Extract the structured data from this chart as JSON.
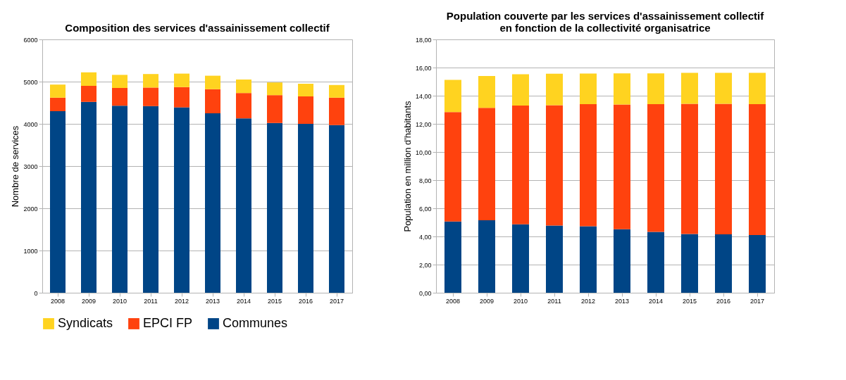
{
  "chart_data": [
    {
      "type": "bar",
      "title": "Composition des services d'assainissement collectif",
      "ylabel": "Nombre de services",
      "stacked": true,
      "grid": "y",
      "legend": "bottom",
      "categories": [
        "2008",
        "2009",
        "2010",
        "2011",
        "2012",
        "2013",
        "2014",
        "2015",
        "2016",
        "2017"
      ],
      "ylim": [
        0,
        6000
      ],
      "yticks": [
        0,
        1000,
        2000,
        3000,
        4000,
        5000,
        6000
      ],
      "series": [
        {
          "name": "Communes",
          "color": "#004586",
          "values": [
            4300,
            4520,
            4430,
            4420,
            4390,
            4250,
            4130,
            4020,
            4000,
            3970
          ]
        },
        {
          "name": "EPCI FP",
          "color": "#ff420e",
          "values": [
            320,
            380,
            420,
            440,
            480,
            570,
            600,
            660,
            650,
            650
          ]
        },
        {
          "name": "Syndicats",
          "color": "#ffd320",
          "values": [
            310,
            320,
            310,
            320,
            320,
            320,
            320,
            300,
            300,
            300
          ]
        }
      ]
    },
    {
      "type": "bar",
      "title": "Population couverte par les services d'assainissement collectif\nen fonction de la collectivité organisatrice",
      "ylabel": "Population en million d'habitants",
      "stacked": true,
      "grid": "y",
      "legend": "bottom",
      "categories": [
        "2008",
        "2009",
        "2010",
        "2011",
        "2012",
        "2013",
        "2014",
        "2015",
        "2016",
        "2017"
      ],
      "ylim": [
        0,
        18
      ],
      "yticks": [
        {
          "value": 0,
          "label": "0,00"
        },
        {
          "value": 2,
          "label": "2,00"
        },
        {
          "value": 4,
          "label": "4,00"
        },
        {
          "value": 6,
          "label": "6,00"
        },
        {
          "value": 8,
          "label": "8,00"
        },
        {
          "value": 10,
          "label": "10,00"
        },
        {
          "value": 12,
          "label": "12,00"
        },
        {
          "value": 14,
          "label": "14,00"
        },
        {
          "value": 16,
          "label": "16,00"
        },
        {
          "value": 18,
          "label": "18,00"
        }
      ],
      "series": [
        {
          "name": "Communes",
          "color": "#004586",
          "values": [
            5.06,
            5.15,
            4.86,
            4.77,
            4.72,
            4.51,
            4.33,
            4.17,
            4.15,
            4.1
          ]
        },
        {
          "name": "EPCI FP",
          "color": "#ff420e",
          "values": [
            7.78,
            7.99,
            8.44,
            8.56,
            8.68,
            8.87,
            9.07,
            9.25,
            9.27,
            9.3
          ]
        },
        {
          "name": "Syndicats",
          "color": "#ffd320",
          "values": [
            2.28,
            2.26,
            2.22,
            2.23,
            2.18,
            2.21,
            2.19,
            2.21,
            2.21,
            2.23
          ]
        }
      ]
    }
  ]
}
